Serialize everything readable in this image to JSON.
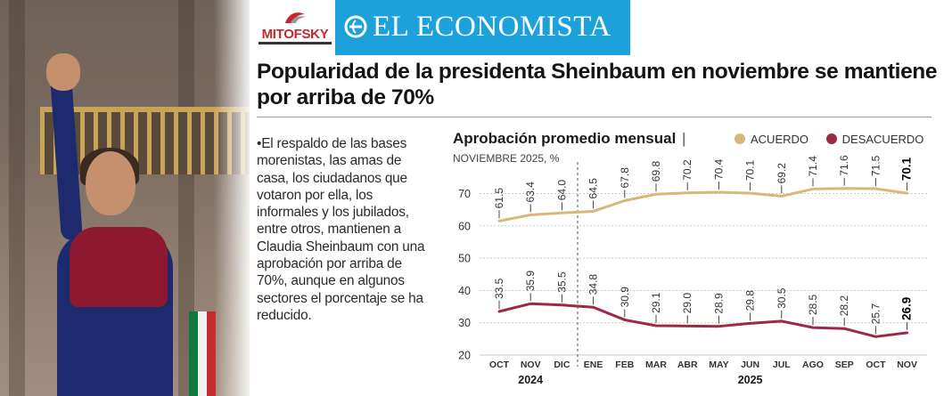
{
  "header": {
    "brand_pollster": "MITOFSKY",
    "brand_paper": "EL ECONOMISTA",
    "headline": "Popularidad de la presidenta Sheinbaum en noviembre se mantiene por arriba de 70%"
  },
  "article": {
    "body": "•El respaldo de las bases morenistas, las amas de casa, los ciudadanos que votaron por ella, los informales y los jubilados, entre otros, mantienen a Claudia Sheinbaum con una aprobación por arriba de 70%, aunque en algunos sectores el porcentaje se ha reducido."
  },
  "colors": {
    "acuerdo": "#d8b77a",
    "desacuerdo": "#9a2a45",
    "brand_blue": "#1da1db",
    "brand_red": "#c8262e"
  },
  "chart_data": {
    "type": "line",
    "title": "Aprobación promedio mensual",
    "title_separator": "|",
    "subtitle": "NOVIEMBRE 2025, %",
    "categories": [
      "OCT",
      "NOV",
      "DIC",
      "ENE",
      "FEB",
      "MAR",
      "ABR",
      "MAY",
      "JUN",
      "JUL",
      "AGO",
      "SEP",
      "OCT",
      "NOV"
    ],
    "year_groups": [
      {
        "label": "2024",
        "from": 0,
        "to": 2
      },
      {
        "label": "2025",
        "from": 3,
        "to": 13
      }
    ],
    "series": [
      {
        "name": "ACUERDO",
        "color": "#d8b77a",
        "values": [
          61.5,
          63.4,
          64.0,
          64.5,
          67.8,
          69.8,
          70.2,
          70.4,
          70.1,
          69.2,
          71.4,
          71.6,
          71.5,
          70.1
        ],
        "labels": [
          "61.5",
          "63.4",
          "64.0",
          "64.5",
          "67.8",
          "69.8",
          "70.2",
          "70.4",
          "70.1",
          "69.2",
          "71.4",
          "71.6",
          "71.5",
          "70.1"
        ]
      },
      {
        "name": "DESACUERDO",
        "color": "#9a2a45",
        "values": [
          33.5,
          35.9,
          35.5,
          34.8,
          30.9,
          29.1,
          29.0,
          28.9,
          29.8,
          30.5,
          28.5,
          28.2,
          25.7,
          26.9
        ],
        "labels": [
          "33.5",
          "35.9",
          "35.5",
          "34.8",
          "30.9",
          "29.1",
          "29.0",
          "28.9",
          "29.8",
          "30.5",
          "28.5",
          "28.2",
          "25.7",
          "26.9"
        ]
      }
    ],
    "ylim": [
      20,
      70
    ],
    "yticks": [
      20,
      30,
      40,
      50,
      60,
      70
    ],
    "ytick_labels": [
      "20",
      "30",
      "40",
      "50",
      "60",
      "70"
    ],
    "divider_after_index": 2,
    "legend_position": "top-right",
    "grid": true
  }
}
